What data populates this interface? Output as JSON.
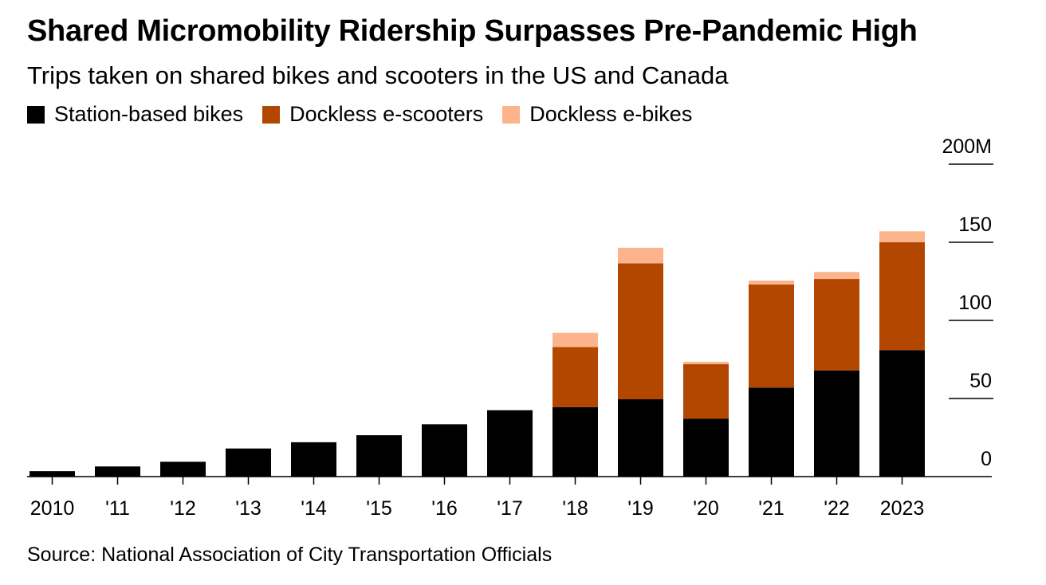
{
  "chart_data": {
    "type": "bar",
    "stacked": true,
    "title": "Shared Micromobility Ridership Surpasses Pre-Pandemic High",
    "subtitle": "Trips taken on shared bikes and scooters in the US and Canada",
    "categories": [
      "2010",
      "'11",
      "'12",
      "'13",
      "'14",
      "'15",
      "'16",
      "'17",
      "'18",
      "'19",
      "'20",
      "'21",
      "'22",
      "2023"
    ],
    "series": [
      {
        "name": "Station-based bikes",
        "color": "#000000",
        "values": [
          3.5,
          6.5,
          9.5,
          18,
          22,
          26.5,
          33.5,
          42.5,
          44.5,
          49.5,
          37,
          57,
          68,
          81
        ]
      },
      {
        "name": "Dockless e-scooters",
        "color": "#b34700",
        "values": [
          0,
          0,
          0,
          0,
          0,
          0,
          0,
          0,
          38.5,
          87,
          35,
          66,
          58.5,
          69
        ]
      },
      {
        "name": "Dockless e-bikes",
        "color": "#fcb48c",
        "values": [
          0,
          0,
          0,
          0,
          0,
          0,
          0,
          0,
          9,
          10,
          1.5,
          2.5,
          4.5,
          7
        ]
      }
    ],
    "ylim": [
      0,
      200
    ],
    "yticks": [
      0,
      50,
      100,
      150,
      200
    ],
    "ytick_labels": [
      "0",
      "50",
      "100",
      "150",
      "200M"
    ],
    "xlabel": "",
    "ylabel": "",
    "legend_position": "top-left",
    "grid": false
  },
  "source": "Source: National Association of City Transportation Officials"
}
